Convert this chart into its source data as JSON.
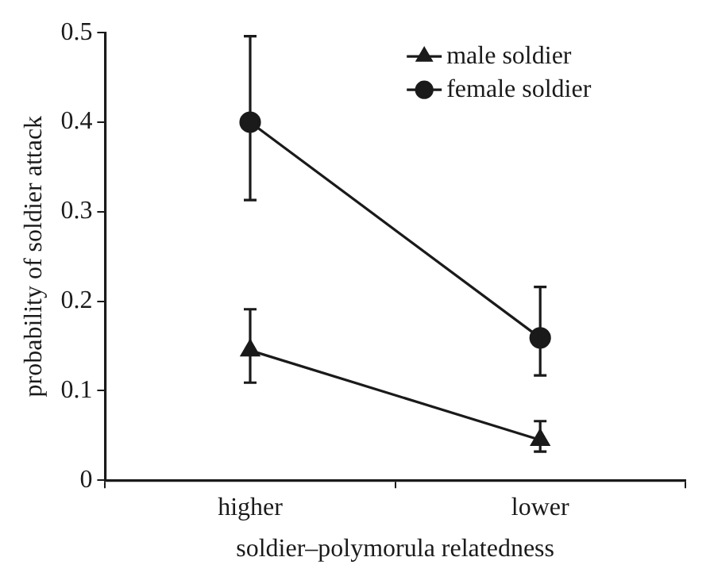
{
  "chart_data": {
    "type": "line",
    "xlabel": "soldier–polymorula relatedness",
    "ylabel": "probability of soldier attack",
    "categories": [
      "higher",
      "lower"
    ],
    "series": [
      {
        "name": "male soldier",
        "color": "#1a1a1a",
        "marker": "triangle",
        "values": [
          0.145,
          0.045
        ],
        "errors": [
          [
            0.109,
            0.191
          ],
          [
            0.032,
            0.066
          ]
        ]
      },
      {
        "name": "female soldier",
        "color": "#1a1a1a",
        "marker": "circle",
        "values": [
          0.4,
          0.159
        ],
        "errors": [
          [
            0.313,
            0.496
          ],
          [
            0.117,
            0.216
          ]
        ]
      }
    ],
    "ylim": [
      0,
      0.5
    ],
    "yticks": [
      0,
      0.1,
      0.2,
      0.3,
      0.4,
      0.5
    ],
    "grid": false,
    "legend": "top right"
  }
}
